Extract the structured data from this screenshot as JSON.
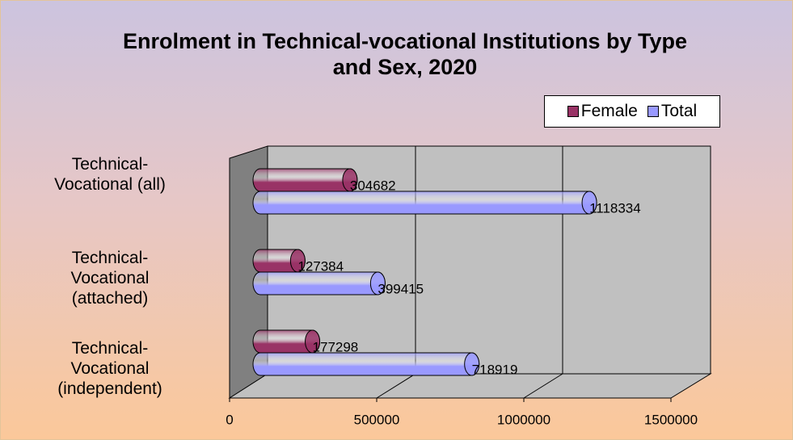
{
  "chart_data": {
    "type": "bar3d",
    "title": "Enrolment in Technical-vocational Institutions by Type and Sex, 2020",
    "categories": [
      "Technical-Vocational (all)",
      "Technical-Vocational (attached)",
      "Technical-Vocational (independent)"
    ],
    "series": [
      {
        "name": "Female",
        "color": "#993366",
        "values": [
          304682,
          127384,
          177298
        ]
      },
      {
        "name": "Total",
        "color": "#9999ff",
        "values": [
          1118334,
          399415,
          718919
        ]
      }
    ],
    "xlim": [
      0,
      1500000
    ],
    "xticks": [
      0,
      500000,
      1000000,
      1500000
    ],
    "grid": true,
    "legend": "top-right"
  }
}
